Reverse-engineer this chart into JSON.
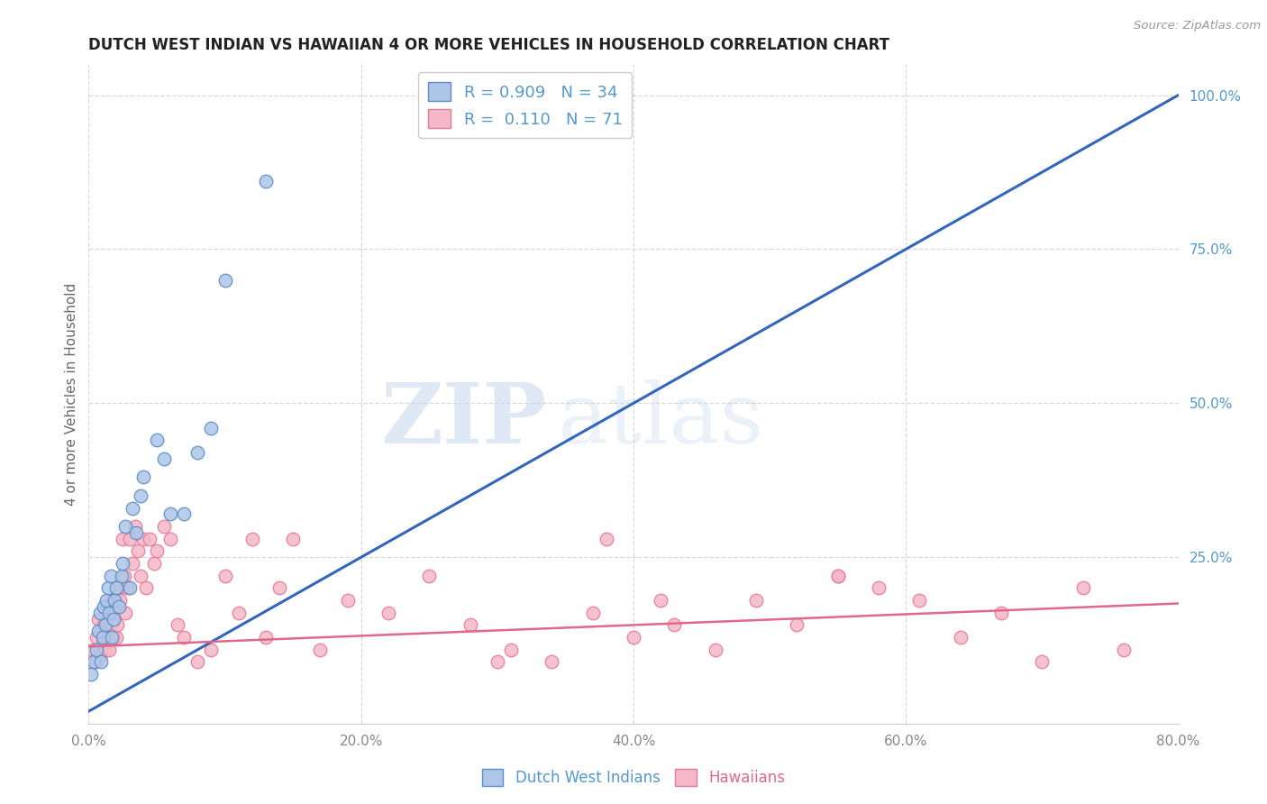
{
  "title": "DUTCH WEST INDIAN VS HAWAIIAN 4 OR MORE VEHICLES IN HOUSEHOLD CORRELATION CHART",
  "source": "Source: ZipAtlas.com",
  "ylabel": "4 or more Vehicles in Household",
  "xlim": [
    0.0,
    0.8
  ],
  "ylim": [
    -0.02,
    1.05
  ],
  "xtick_labels": [
    "0.0%",
    "20.0%",
    "40.0%",
    "60.0%",
    "80.0%"
  ],
  "xtick_vals": [
    0.0,
    0.2,
    0.4,
    0.6,
    0.8
  ],
  "ytick_labels": [
    "25.0%",
    "50.0%",
    "75.0%",
    "100.0%"
  ],
  "ytick_vals": [
    0.25,
    0.5,
    0.75,
    1.0
  ],
  "blue_R": "0.909",
  "blue_N": "34",
  "pink_R": "0.110",
  "pink_N": "71",
  "blue_scatter_x": [
    0.002,
    0.004,
    0.006,
    0.007,
    0.008,
    0.009,
    0.01,
    0.011,
    0.012,
    0.013,
    0.014,
    0.015,
    0.016,
    0.017,
    0.018,
    0.019,
    0.02,
    0.022,
    0.024,
    0.025,
    0.027,
    0.03,
    0.032,
    0.035,
    0.038,
    0.04,
    0.05,
    0.055,
    0.06,
    0.07,
    0.08,
    0.09,
    0.1,
    0.13
  ],
  "blue_scatter_y": [
    0.06,
    0.08,
    0.1,
    0.13,
    0.16,
    0.08,
    0.12,
    0.17,
    0.14,
    0.18,
    0.2,
    0.16,
    0.22,
    0.12,
    0.15,
    0.18,
    0.2,
    0.17,
    0.22,
    0.24,
    0.3,
    0.2,
    0.33,
    0.29,
    0.35,
    0.38,
    0.44,
    0.41,
    0.32,
    0.32,
    0.42,
    0.46,
    0.7,
    0.86
  ],
  "pink_scatter_x": [
    0.003,
    0.005,
    0.006,
    0.007,
    0.008,
    0.009,
    0.01,
    0.011,
    0.012,
    0.013,
    0.014,
    0.015,
    0.016,
    0.017,
    0.018,
    0.019,
    0.02,
    0.021,
    0.022,
    0.023,
    0.025,
    0.026,
    0.027,
    0.028,
    0.03,
    0.032,
    0.034,
    0.036,
    0.038,
    0.04,
    0.042,
    0.045,
    0.048,
    0.05,
    0.055,
    0.06,
    0.065,
    0.07,
    0.08,
    0.09,
    0.1,
    0.11,
    0.12,
    0.13,
    0.14,
    0.15,
    0.17,
    0.19,
    0.22,
    0.25,
    0.28,
    0.31,
    0.34,
    0.37,
    0.4,
    0.43,
    0.46,
    0.49,
    0.52,
    0.55,
    0.58,
    0.61,
    0.64,
    0.67,
    0.7,
    0.73,
    0.76,
    0.55,
    0.42,
    0.38,
    0.3
  ],
  "pink_scatter_y": [
    0.1,
    0.08,
    0.12,
    0.15,
    0.09,
    0.13,
    0.11,
    0.14,
    0.1,
    0.16,
    0.12,
    0.1,
    0.18,
    0.14,
    0.12,
    0.16,
    0.12,
    0.14,
    0.2,
    0.18,
    0.28,
    0.22,
    0.16,
    0.2,
    0.28,
    0.24,
    0.3,
    0.26,
    0.22,
    0.28,
    0.2,
    0.28,
    0.24,
    0.26,
    0.3,
    0.28,
    0.14,
    0.12,
    0.08,
    0.1,
    0.22,
    0.16,
    0.28,
    0.12,
    0.2,
    0.28,
    0.1,
    0.18,
    0.16,
    0.22,
    0.14,
    0.1,
    0.08,
    0.16,
    0.12,
    0.14,
    0.1,
    0.18,
    0.14,
    0.22,
    0.2,
    0.18,
    0.12,
    0.16,
    0.08,
    0.2,
    0.1,
    0.22,
    0.18,
    0.28,
    0.08
  ],
  "blue_line_x": [
    0.0,
    0.8
  ],
  "blue_line_y": [
    0.0,
    1.0
  ],
  "pink_line_x": [
    0.0,
    0.8
  ],
  "pink_line_y": [
    0.105,
    0.175
  ],
  "blue_color": "#adc6e8",
  "blue_edge_color": "#5b8ec4",
  "pink_color": "#f4b8c8",
  "pink_edge_color": "#e8789a",
  "blue_line_color": "#3366bb",
  "pink_line_color": "#e06888",
  "watermark_zip": "ZIP",
  "watermark_atlas": "atlas",
  "background_color": "#ffffff",
  "grid_color": "#d8d8d8",
  "title_color": "#222222",
  "ylabel_color": "#666666",
  "tick_color": "#888888",
  "right_tick_color": "#5599cc",
  "legend_label1": "R = 0.909   N = 34",
  "legend_label2": "R =  0.110   N = 71",
  "bottom_legend1": "Dutch West Indians",
  "bottom_legend2": "Hawaiians"
}
